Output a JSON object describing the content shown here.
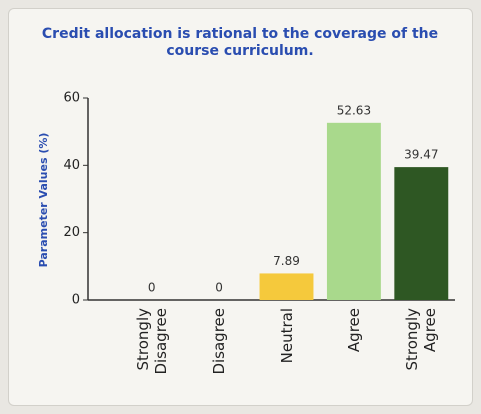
{
  "chart_data": {
    "type": "bar",
    "title": "Credit allocation is rational to the coverage of the course curriculum.",
    "y_label": "Parameter Values (%)",
    "categories": [
      "Strongly Disagree",
      "Disagree",
      "Neutral",
      "Agree",
      "Strongly Agree"
    ],
    "values": [
      0,
      0,
      7.89,
      52.63,
      39.47
    ],
    "colors": [
      "#f2c53b",
      "#f2c53b",
      "#f5c93c",
      "#a9d98c",
      "#2e5723"
    ],
    "ylim": [
      0,
      60
    ],
    "yticks": [
      0,
      20,
      40,
      60
    ],
    "grid": false
  }
}
